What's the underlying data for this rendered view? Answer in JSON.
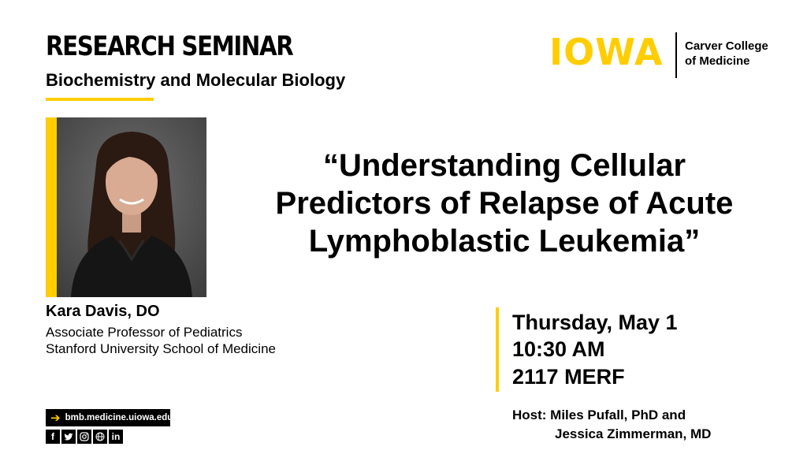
{
  "header": {
    "title": "RESEARCH SEMINAR",
    "department": "Biochemistry and Molecular Biology"
  },
  "logo": {
    "wordmark": "IOWA",
    "college_line1": "Carver College",
    "college_line2": "of Medicine"
  },
  "talk": {
    "title_lines": [
      "“Understanding Cellular",
      "Predictors of Relapse of Acute",
      "Lymphoblastic Leukemia”"
    ]
  },
  "speaker": {
    "name": "Kara Davis, DO",
    "position": "Associate Professor of Pediatrics",
    "institution": "Stanford University School of Medicine"
  },
  "event": {
    "date": "Thursday, May 1",
    "time": "10:30 AM",
    "location": "2117 MERF"
  },
  "host": {
    "line1": "Host: Miles Pufall, PhD and",
    "line2": "Jessica Zimmerman, MD"
  },
  "footer": {
    "website": "bmb.medicine.uiowa.edu",
    "social_icons": [
      "facebook-icon",
      "twitter-icon",
      "instagram-icon",
      "globe-icon",
      "linkedin-icon"
    ]
  },
  "colors": {
    "accent_gold": "#FFCD00",
    "text": "#000000",
    "background": "#FFFFFF"
  }
}
